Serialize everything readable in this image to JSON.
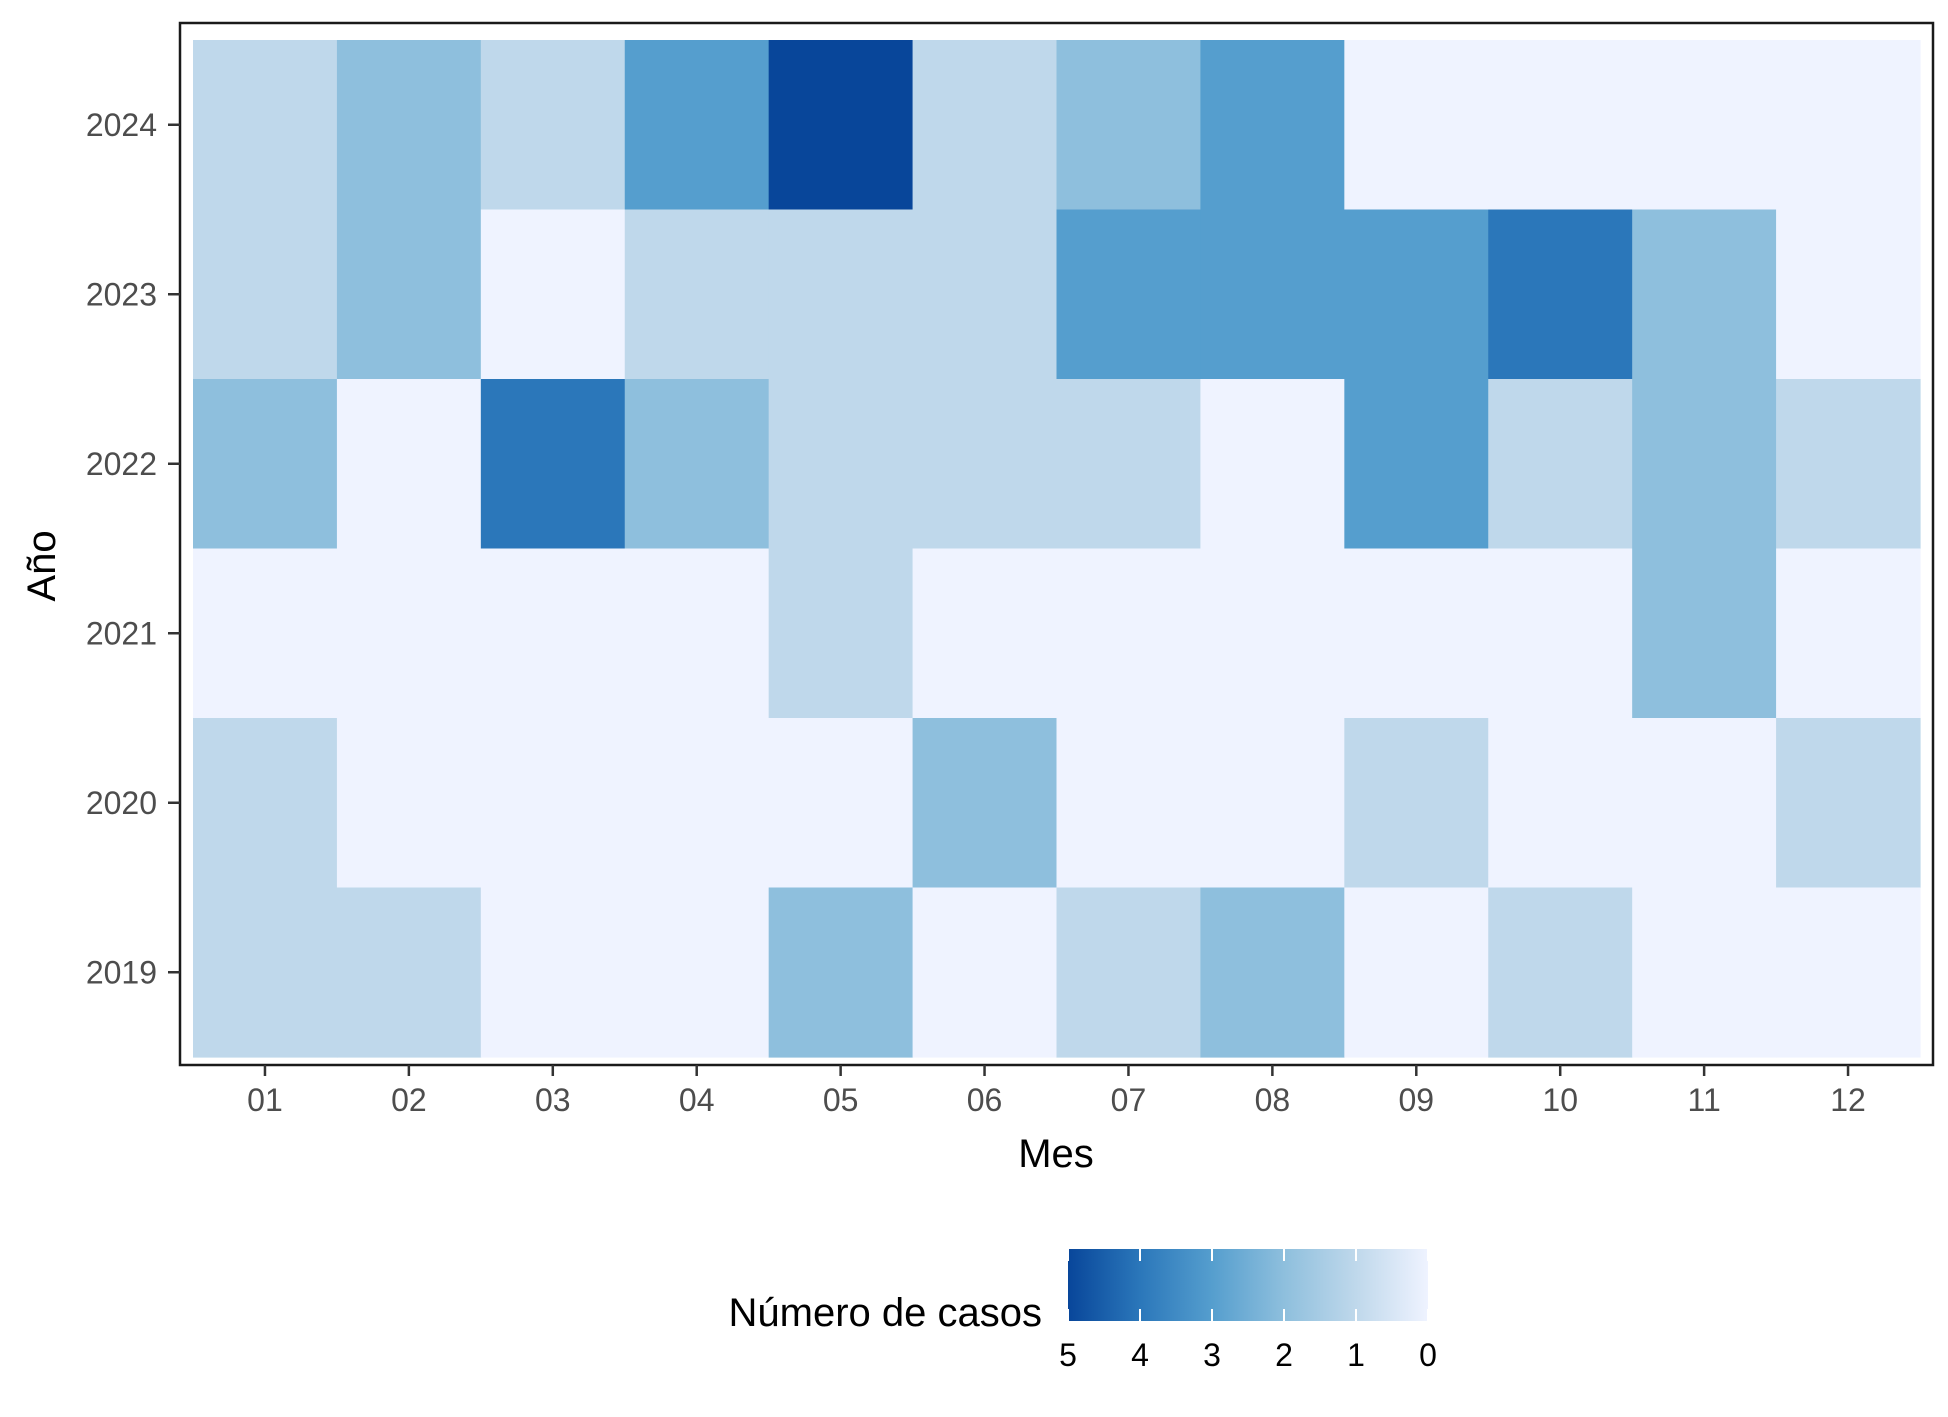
{
  "chart_data": {
    "type": "heatmap",
    "xlabel": "Mes",
    "ylabel": "Año",
    "x_categories": [
      "01",
      "02",
      "03",
      "04",
      "05",
      "06",
      "07",
      "08",
      "09",
      "10",
      "11",
      "12"
    ],
    "y_categories": [
      "2019",
      "2020",
      "2021",
      "2022",
      "2023",
      "2024"
    ],
    "values": {
      "2024": [
        1,
        2,
        1,
        3,
        5,
        1,
        2,
        3,
        0,
        0,
        0,
        0
      ],
      "2023": [
        1,
        2,
        0,
        1,
        1,
        1,
        3,
        3,
        3,
        4,
        2,
        0
      ],
      "2022": [
        2,
        0,
        4,
        2,
        1,
        1,
        1,
        0,
        3,
        1,
        2,
        1
      ],
      "2021": [
        0,
        0,
        0,
        0,
        1,
        0,
        0,
        0,
        0,
        0,
        2,
        0
      ],
      "2020": [
        1,
        0,
        0,
        0,
        0,
        2,
        0,
        0,
        1,
        0,
        0,
        1
      ],
      "2019": [
        1,
        1,
        0,
        0,
        2,
        0,
        1,
        2,
        0,
        1,
        0,
        0
      ]
    },
    "colors": {
      "0": "#eff3ff",
      "1": "#bfd8eb",
      "2": "#8ebfdd",
      "3": "#559ece",
      "4": "#2b77ba",
      "5": "#08469a"
    },
    "legend": {
      "title": "Número de casos",
      "labels": [
        "5",
        "4",
        "3",
        "2",
        "1",
        "0"
      ],
      "position": "bottom",
      "reversed": true
    },
    "grid": false
  }
}
